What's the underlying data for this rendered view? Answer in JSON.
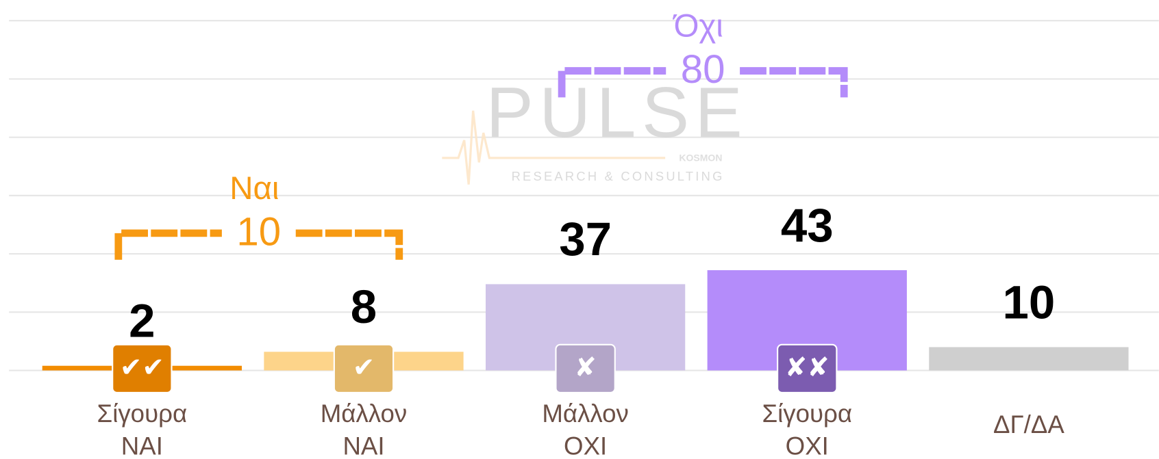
{
  "chart_data": {
    "type": "bar",
    "categories": [
      [
        "Σίγουρα",
        "ΝΑΙ"
      ],
      [
        "Μάλλον",
        "ΝΑΙ"
      ],
      [
        "Μάλλον",
        "ΟΧΙ"
      ],
      [
        "Σίγουρα",
        "ΟΧΙ"
      ],
      [
        "ΔΓ/ΔΑ"
      ]
    ],
    "values": [
      2,
      8,
      37,
      43,
      10
    ],
    "colors": [
      "#f28c00",
      "#fdd48a",
      "#cfc3e8",
      "#b48cfa",
      "#cfcfcf"
    ],
    "ylim": [
      0,
      150
    ],
    "yticks": [
      0,
      25,
      50,
      75,
      100,
      125,
      150
    ],
    "grid": true,
    "annotations": [
      {
        "label": "Ναι",
        "value": 10,
        "color": "#f79a13"
      },
      {
        "label": "Όχι",
        "value": 80,
        "color": "#b48cfa"
      }
    ],
    "watermark": {
      "title": "PULSE",
      "brand": "KOSMON",
      "subtitle": "RESEARCH & CONSULTING"
    }
  }
}
